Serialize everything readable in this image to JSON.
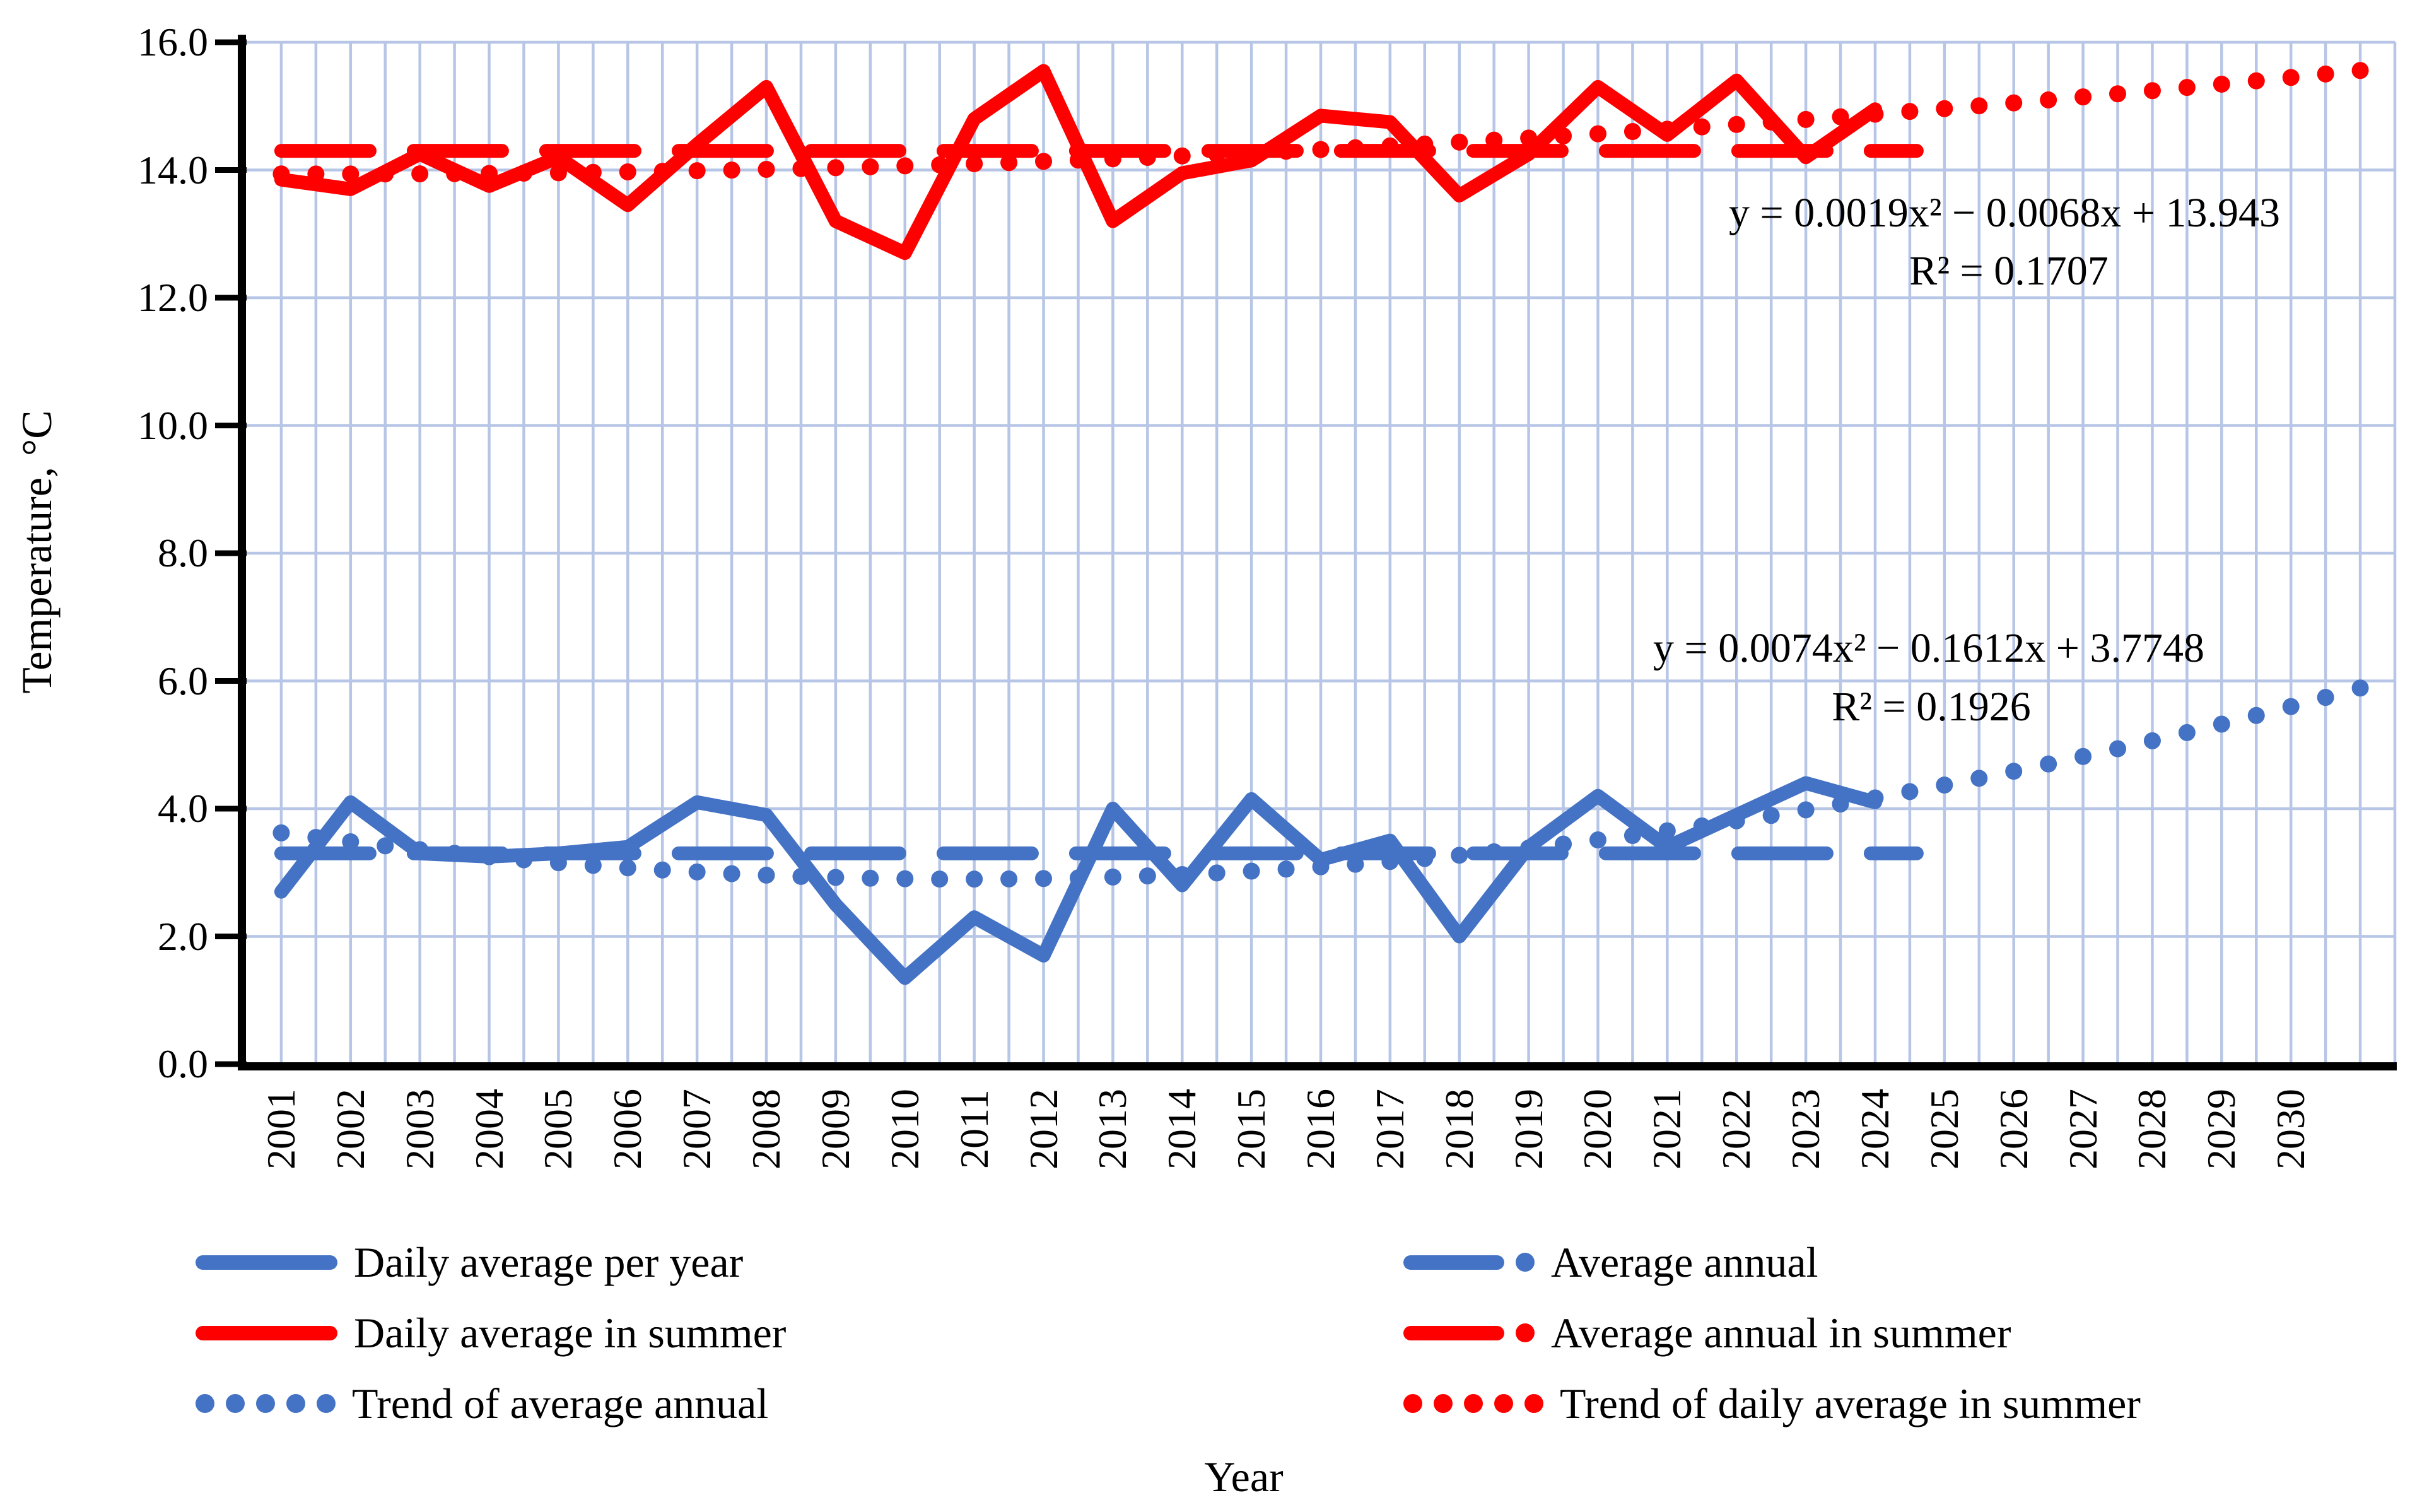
{
  "axis": {
    "ylabel": "Temperature, °C",
    "xlabel": "Year",
    "y_ticks": [
      "0.0",
      "2.0",
      "4.0",
      "6.0",
      "8.0",
      "10.0",
      "12.0",
      "14.0",
      "16.0"
    ],
    "x_tick_labels": [
      "2001",
      "2002",
      "2003",
      "2004",
      "2005",
      "2006",
      "2007",
      "2008",
      "2009",
      "2010",
      "2011",
      "2012",
      "2013",
      "2014",
      "2015",
      "2016",
      "2017",
      "2018",
      "2019",
      "2020",
      "2021",
      "2022",
      "2023",
      "2024",
      "2025",
      "2026",
      "2027",
      "2028",
      "2029",
      "2030"
    ]
  },
  "equations": {
    "summer": {
      "line1": "y = 0.0019x² − 0.0068x + 13.943",
      "line2": "R² = 0.1707"
    },
    "annual": {
      "line1": "y = 0.0074x² − 0.1612x + 3.7748",
      "line2": "R² = 0.1926"
    }
  },
  "legend": {
    "items": [
      {
        "label": "Daily average per year",
        "style": "solid",
        "color": "#4472C4"
      },
      {
        "label": "Average annual",
        "style": "dashdot",
        "color": "#4472C4"
      },
      {
        "label": "Daily average in summer",
        "style": "solid",
        "color": "#FF0000"
      },
      {
        "label": "Average annual in summer",
        "style": "dashdot",
        "color": "#FF0000"
      },
      {
        "label": "Trend of average annual",
        "style": "dotted",
        "color": "#4472C4"
      },
      {
        "label": "Trend of daily average in summer",
        "style": "dotted",
        "color": "#FF0000"
      }
    ]
  },
  "colors": {
    "blue": "#4472C4",
    "red": "#FF0000",
    "gridline": "#b7c6e6",
    "axis": "#000000"
  },
  "chart_data": {
    "type": "line",
    "xlabel": "Year",
    "ylabel": "Temperature, °C",
    "ylim": [
      0,
      16
    ],
    "ytick_step": 2.0,
    "grid": "on",
    "legend_position": "bottom",
    "categories_total": 31,
    "observed_years_start": 2001,
    "observed_years_end": 2024,
    "series": [
      {
        "name": "Daily average per year",
        "type": "solid",
        "color": "#4472C4",
        "start_year": 2001,
        "values": [
          2.7,
          4.1,
          3.3,
          3.25,
          3.3,
          3.4,
          4.1,
          3.9,
          2.5,
          1.35,
          2.3,
          1.7,
          4.0,
          2.8,
          4.15,
          3.2,
          3.5,
          2.0,
          3.4,
          4.2,
          3.4,
          3.9,
          4.4,
          4.1
        ]
      },
      {
        "name": "Daily average in summer",
        "type": "solid",
        "color": "#FF0000",
        "start_year": 2001,
        "values": [
          13.85,
          13.7,
          14.25,
          13.75,
          14.2,
          13.45,
          14.4,
          15.3,
          13.2,
          12.7,
          14.8,
          15.55,
          13.2,
          13.95,
          14.15,
          14.85,
          14.75,
          13.6,
          14.25,
          15.3,
          14.55,
          15.4,
          14.2,
          14.95
        ]
      },
      {
        "name": "Average annual",
        "type": "dashed",
        "color": "#4472C4",
        "value": 3.3,
        "span_years": [
          2001,
          2024.6
        ]
      },
      {
        "name": "Average annual in summer",
        "type": "dashed",
        "color": "#FF0000",
        "value": 14.3,
        "span_years": [
          2001,
          2024.6
        ]
      },
      {
        "name": "Trend of average annual",
        "type": "dotted",
        "color": "#4472C4",
        "equation": {
          "a": 0.0074,
          "b": -0.1612,
          "c": 3.7748
        },
        "x_index_range": [
          1,
          31
        ],
        "x_index_step": 0.5
      },
      {
        "name": "Trend of daily average in summer",
        "type": "dotted",
        "color": "#FF0000",
        "equation": {
          "a": 0.0019,
          "b": -0.0068,
          "c": 13.943
        },
        "x_index_range": [
          1,
          31
        ],
        "x_index_step": 0.5
      }
    ]
  }
}
